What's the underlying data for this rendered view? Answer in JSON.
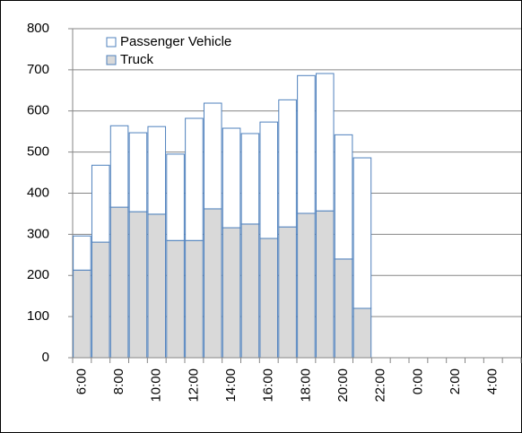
{
  "chart_data": {
    "type": "stacked_bar",
    "categories": [
      "6:00",
      null,
      "8:00",
      null,
      "10:00",
      null,
      "12:00",
      null,
      "14:00",
      null,
      "16:00",
      null,
      "18:00",
      null,
      "20:00",
      null,
      "22:00",
      null,
      "0:00",
      null,
      "2:00",
      null,
      "4:00",
      null
    ],
    "series": [
      {
        "name": "Truck",
        "color": "#d9d9d9",
        "values": [
          213,
          281,
          366,
          355,
          349,
          285,
          285,
          362,
          316,
          325,
          290,
          318,
          351,
          357,
          240,
          120,
          null,
          null,
          null,
          null,
          null,
          null,
          null,
          null
        ]
      },
      {
        "name": "Passenger Vehicle",
        "color": "#ffffff",
        "values": [
          83,
          187,
          198,
          192,
          213,
          210,
          297,
          257,
          242,
          220,
          283,
          309,
          335,
          334,
          302,
          366,
          null,
          null,
          null,
          null,
          null,
          null,
          null,
          null
        ]
      }
    ],
    "edge_color": "#4f81bd",
    "ylim": [
      0,
      800
    ],
    "yticks": [
      0,
      100,
      200,
      300,
      400,
      500,
      600,
      700,
      800
    ],
    "grid": true,
    "legend": "upper left"
  }
}
